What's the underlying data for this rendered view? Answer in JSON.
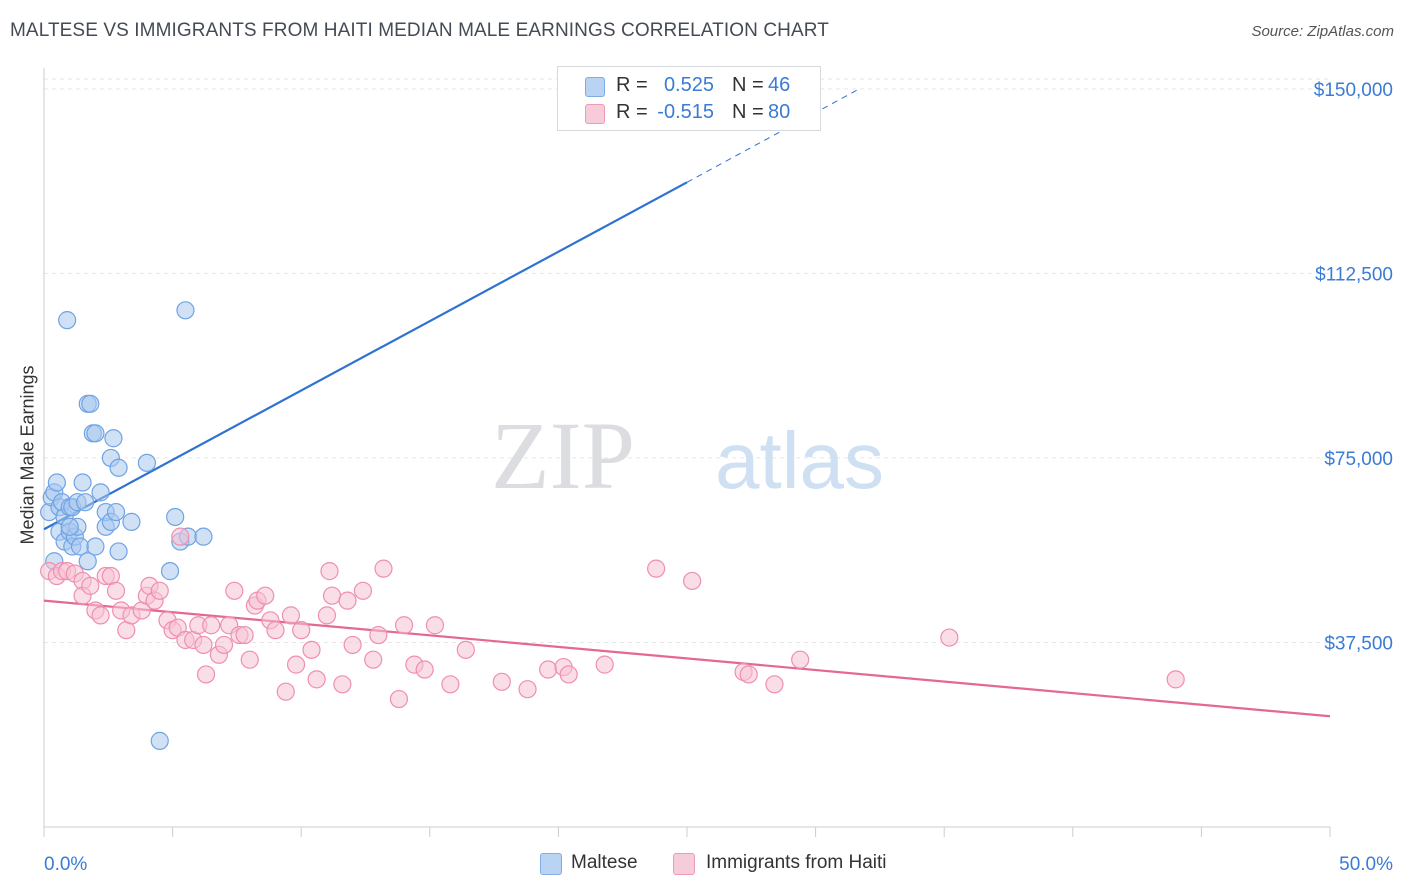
{
  "title": "MALTESE VS IMMIGRANTS FROM HAITI MEDIAN MALE EARNINGS CORRELATION CHART",
  "source": "Source: ZipAtlas.com",
  "watermark": {
    "zip": "ZIP",
    "atlas": "atlas"
  },
  "legend_top": {
    "rows": [
      {
        "r_label": "R =",
        "r_value": "0.525",
        "n_label": "N =",
        "n_value": "46",
        "color": "#9fc3ee"
      },
      {
        "r_label": "R =",
        "r_value": "-0.515",
        "n_label": "N =",
        "n_value": "80",
        "color": "#f4b8cb"
      }
    ]
  },
  "legend_bottom": [
    {
      "label": "Maltese",
      "color": "#9fc3ee"
    },
    {
      "label": "Immigrants from Haiti",
      "color": "#f4b8cb"
    }
  ],
  "chart_data": {
    "type": "scatter",
    "xlabel": "",
    "ylabel": "Median Male Earnings",
    "xlim": [
      0,
      50
    ],
    "ylim": [
      0,
      152000
    ],
    "x_tick_labels": [
      "0.0%",
      "50.0%"
    ],
    "y_ticks": [
      {
        "value": 37500,
        "label": "$37,500"
      },
      {
        "value": 75000,
        "label": "$75,000"
      },
      {
        "value": 112500,
        "label": "$112,500"
      },
      {
        "value": 150000,
        "label": "$150,000"
      }
    ],
    "grid": true,
    "series": [
      {
        "name": "Maltese",
        "color": "#6fa3e4",
        "fill": "#a9c9ef",
        "trend": {
          "x": [
            0,
            25
          ],
          "y": [
            60500,
            131000
          ],
          "dashed_to": [
            31.7,
            150000
          ],
          "color": "#2f72d1"
        },
        "points": [
          [
            0.2,
            64000
          ],
          [
            0.3,
            67000
          ],
          [
            0.4,
            68000
          ],
          [
            0.4,
            54000
          ],
          [
            0.5,
            70000
          ],
          [
            0.6,
            65000
          ],
          [
            0.6,
            60000
          ],
          [
            0.7,
            66000
          ],
          [
            0.8,
            58000
          ],
          [
            0.8,
            63000
          ],
          [
            0.9,
            103000
          ],
          [
            1.0,
            65000
          ],
          [
            1.0,
            60000
          ],
          [
            1.1,
            65000
          ],
          [
            1.1,
            57000
          ],
          [
            1.2,
            59000
          ],
          [
            1.3,
            61000
          ],
          [
            1.3,
            66000
          ],
          [
            1.4,
            57000
          ],
          [
            1.5,
            70000
          ],
          [
            1.6,
            66000
          ],
          [
            1.7,
            54000
          ],
          [
            1.7,
            86000
          ],
          [
            1.8,
            86000
          ],
          [
            1.9,
            80000
          ],
          [
            2.0,
            80000
          ],
          [
            2.0,
            57000
          ],
          [
            2.2,
            68000
          ],
          [
            2.4,
            61000
          ],
          [
            2.4,
            64000
          ],
          [
            2.6,
            75000
          ],
          [
            2.6,
            62000
          ],
          [
            2.7,
            79000
          ],
          [
            2.8,
            64000
          ],
          [
            2.9,
            73000
          ],
          [
            2.9,
            56000
          ],
          [
            3.4,
            62000
          ],
          [
            4.0,
            74000
          ],
          [
            4.9,
            52000
          ],
          [
            5.1,
            63000
          ],
          [
            5.3,
            58000
          ],
          [
            5.5,
            105000
          ],
          [
            5.6,
            59000
          ],
          [
            6.2,
            59000
          ],
          [
            4.5,
            17500
          ],
          [
            1.0,
            61000
          ]
        ]
      },
      {
        "name": "Immigrants from Haiti",
        "color": "#ef8fad",
        "fill": "#f6c3d3",
        "trend": {
          "x": [
            0,
            50
          ],
          "y": [
            46000,
            22500
          ],
          "color": "#e4688f"
        },
        "points": [
          [
            0.2,
            52000
          ],
          [
            0.5,
            51000
          ],
          [
            0.7,
            52000
          ],
          [
            0.9,
            52000
          ],
          [
            1.2,
            51500
          ],
          [
            1.5,
            50000
          ],
          [
            1.5,
            47000
          ],
          [
            1.8,
            49000
          ],
          [
            2.0,
            44000
          ],
          [
            2.2,
            43000
          ],
          [
            2.4,
            51000
          ],
          [
            2.6,
            51000
          ],
          [
            2.8,
            48000
          ],
          [
            3.0,
            44000
          ],
          [
            3.2,
            40000
          ],
          [
            3.4,
            43000
          ],
          [
            3.8,
            44000
          ],
          [
            4.0,
            47000
          ],
          [
            4.1,
            49000
          ],
          [
            4.3,
            46000
          ],
          [
            4.5,
            48000
          ],
          [
            4.8,
            42000
          ],
          [
            5.0,
            40000
          ],
          [
            5.2,
            40500
          ],
          [
            5.3,
            59000
          ],
          [
            5.5,
            38000
          ],
          [
            5.8,
            38000
          ],
          [
            6.0,
            41000
          ],
          [
            6.2,
            37000
          ],
          [
            6.3,
            31000
          ],
          [
            6.5,
            41000
          ],
          [
            6.8,
            35000
          ],
          [
            7.0,
            37000
          ],
          [
            7.2,
            41000
          ],
          [
            7.4,
            48000
          ],
          [
            7.6,
            39000
          ],
          [
            7.8,
            39000
          ],
          [
            8.0,
            34000
          ],
          [
            8.2,
            45000
          ],
          [
            8.3,
            46000
          ],
          [
            8.6,
            47000
          ],
          [
            8.8,
            42000
          ],
          [
            9.0,
            40000
          ],
          [
            9.4,
            27500
          ],
          [
            9.6,
            43000
          ],
          [
            9.8,
            33000
          ],
          [
            10.0,
            40000
          ],
          [
            10.4,
            36000
          ],
          [
            10.6,
            30000
          ],
          [
            11.0,
            43000
          ],
          [
            11.1,
            52000
          ],
          [
            11.2,
            47000
          ],
          [
            11.6,
            29000
          ],
          [
            11.8,
            46000
          ],
          [
            12.0,
            37000
          ],
          [
            12.4,
            48000
          ],
          [
            12.8,
            34000
          ],
          [
            13.0,
            39000
          ],
          [
            13.2,
            52500
          ],
          [
            13.8,
            26000
          ],
          [
            14.0,
            41000
          ],
          [
            14.4,
            33000
          ],
          [
            14.8,
            32000
          ],
          [
            15.2,
            41000
          ],
          [
            15.8,
            29000
          ],
          [
            16.4,
            36000
          ],
          [
            17.8,
            29500
          ],
          [
            18.8,
            28000
          ],
          [
            19.6,
            32000
          ],
          [
            20.2,
            32500
          ],
          [
            20.4,
            31000
          ],
          [
            21.8,
            33000
          ],
          [
            23.8,
            52500
          ],
          [
            25.2,
            50000
          ],
          [
            27.2,
            31500
          ],
          [
            27.4,
            31000
          ],
          [
            28.4,
            29000
          ],
          [
            29.4,
            34000
          ],
          [
            35.2,
            38500
          ],
          [
            44.0,
            30000
          ]
        ]
      }
    ]
  }
}
